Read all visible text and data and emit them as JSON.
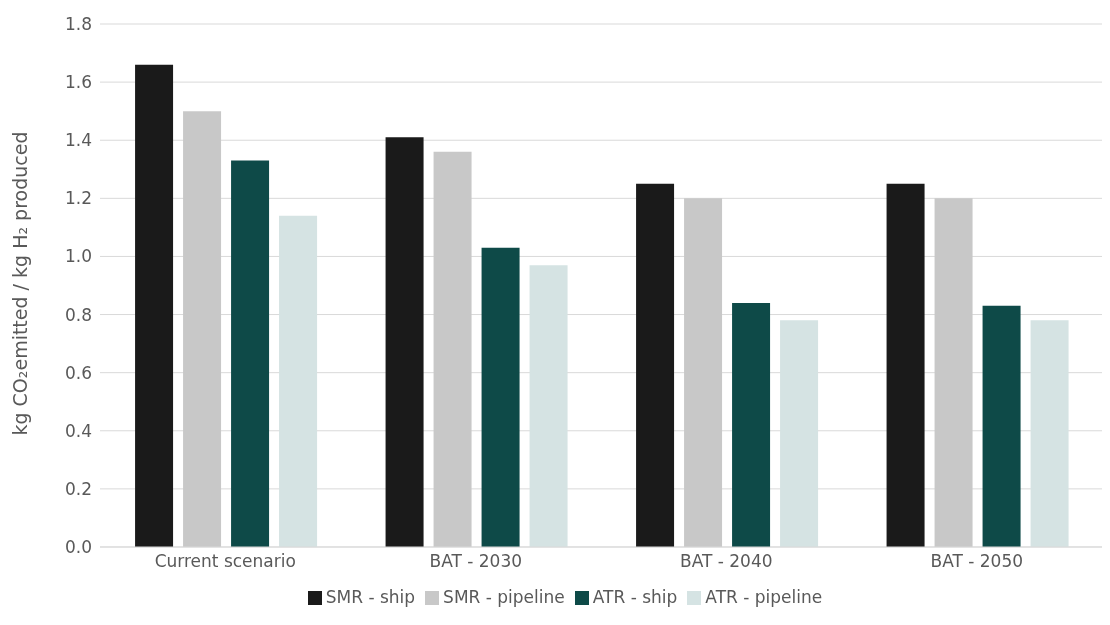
{
  "chart_data": {
    "type": "bar",
    "ylabel": "kg CO₂emitted / kg H₂ produced",
    "categories": [
      "Current scenario",
      "BAT - 2030",
      "BAT - 2040",
      "BAT - 2050"
    ],
    "series": [
      {
        "name": "SMR - ship",
        "color": "#1a1a1a",
        "values": [
          1.66,
          1.41,
          1.25,
          1.25
        ]
      },
      {
        "name": "SMR - pipeline",
        "color": "#c8c8c8",
        "values": [
          1.5,
          1.36,
          1.2,
          1.2
        ]
      },
      {
        "name": "ATR - ship",
        "color": "#0e4a48",
        "values": [
          1.33,
          1.03,
          0.84,
          0.83
        ]
      },
      {
        "name": "ATR - pipeline",
        "color": "#d5e3e3",
        "values": [
          1.14,
          0.97,
          0.78,
          0.78
        ]
      }
    ],
    "ylim": [
      0,
      1.8
    ],
    "yticks": [
      {
        "value": 0,
        "label": "0.0"
      },
      0.2,
      0.4,
      0.6,
      0.8,
      {
        "value": 1,
        "label": "1.0"
      },
      1.2,
      1.4,
      1.6,
      1.8
    ],
    "grid": "y",
    "legend": "bottom"
  }
}
